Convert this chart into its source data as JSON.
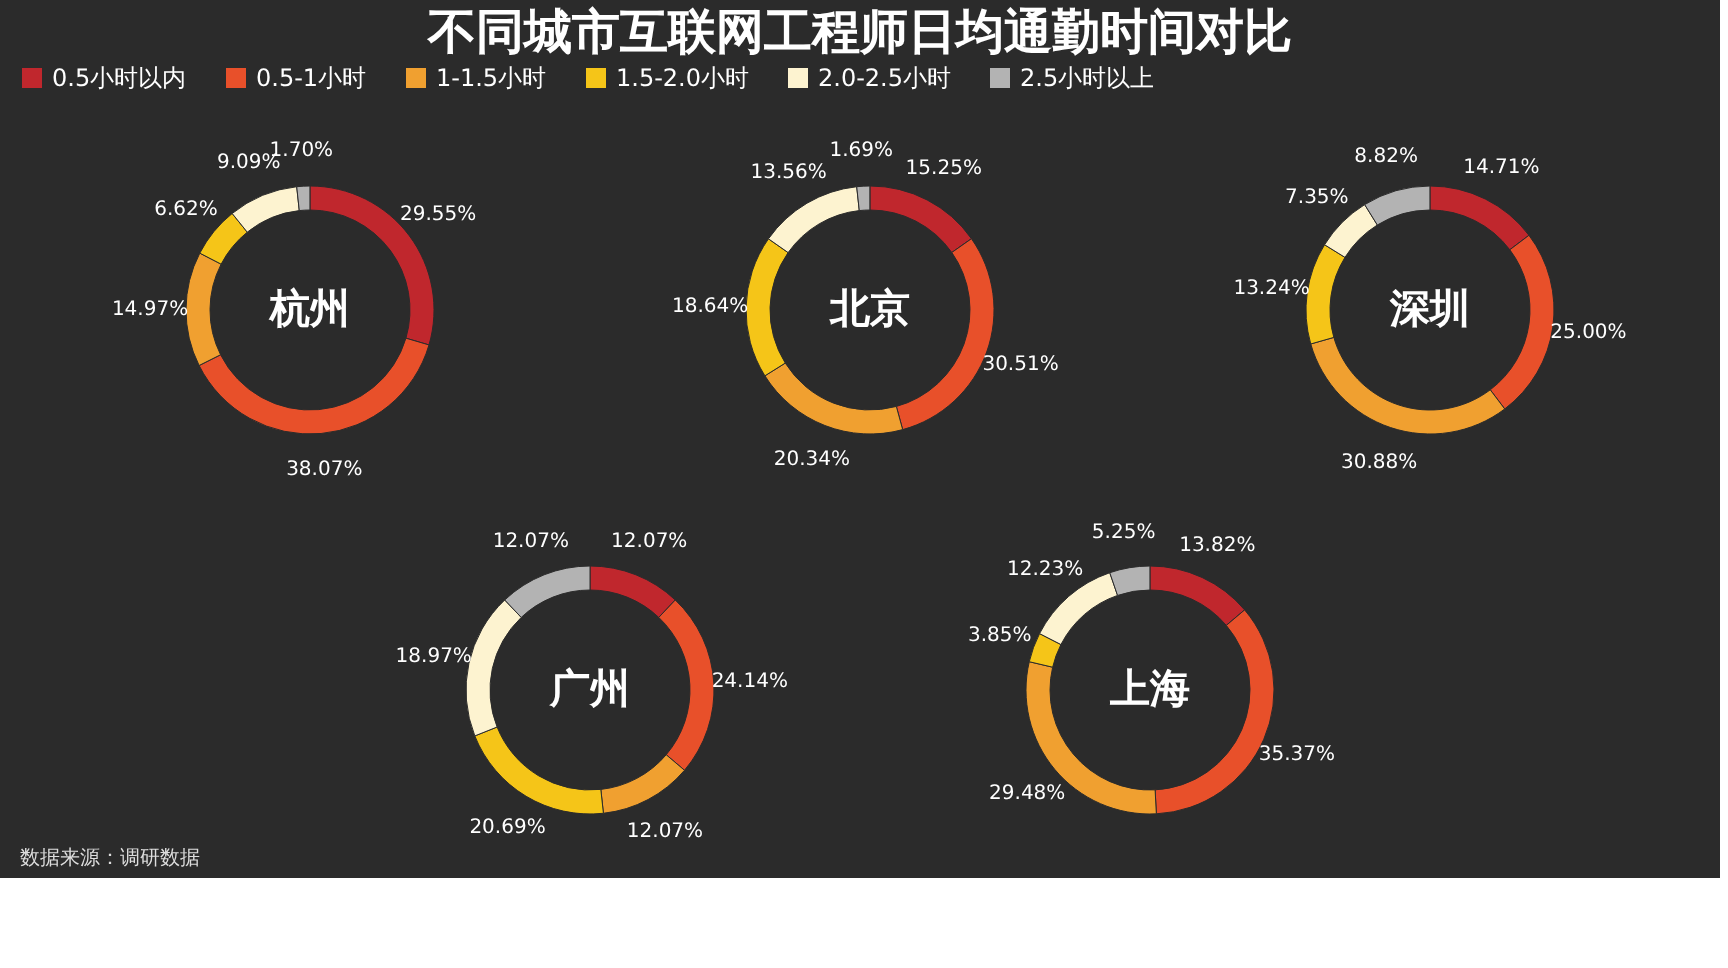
{
  "chart_data": {
    "type": "donut",
    "title": "不同城市互联网工程师日均通勤时间对比",
    "legend": "top",
    "annotations": [
      "数据来源：调研数据"
    ],
    "categories": [
      "0.5小时以内",
      "0.5-1小时",
      "1-1.5小时",
      "1.5-2.0小时",
      "2.0-2.5小时",
      "2.5小时以上"
    ],
    "colors": [
      "#c0272d",
      "#e8502a",
      "#f0a030",
      "#f5c518",
      "#fdf3d0",
      "#b3b3b3"
    ],
    "series": [
      {
        "name": "杭州",
        "values": [
          29.55,
          38.07,
          14.97,
          6.62,
          9.09,
          1.7
        ],
        "value_labels": [
          "29.55%",
          "38.07%",
          "14.97%",
          "6.62%",
          "9.09%",
          "1.70%"
        ]
      },
      {
        "name": "北京",
        "values": [
          15.25,
          30.51,
          20.34,
          18.64,
          13.56,
          1.69
        ],
        "value_labels": [
          "15.25%",
          "30.51%",
          "20.34%",
          "18.64%",
          "13.56%",
          "1.69%"
        ]
      },
      {
        "name": "深圳",
        "values": [
          14.71,
          25.0,
          30.88,
          13.24,
          7.35,
          8.82
        ],
        "value_labels": [
          "14.71%",
          "25.00%",
          "30.88%",
          "13.24%",
          "7.35%",
          "8.82%"
        ]
      },
      {
        "name": "广州",
        "values": [
          12.07,
          24.14,
          12.07,
          20.69,
          18.97,
          12.07
        ],
        "value_labels": [
          "12.07%",
          "24.14%",
          "12.07%",
          "20.69%",
          "18.97%",
          "12.07%"
        ]
      },
      {
        "name": "上海",
        "values": [
          13.82,
          35.37,
          29.48,
          3.85,
          12.23,
          5.25
        ],
        "value_labels": [
          "13.82%",
          "35.37%",
          "29.48%",
          "3.85%",
          "12.23%",
          "5.25%"
        ]
      }
    ]
  }
}
